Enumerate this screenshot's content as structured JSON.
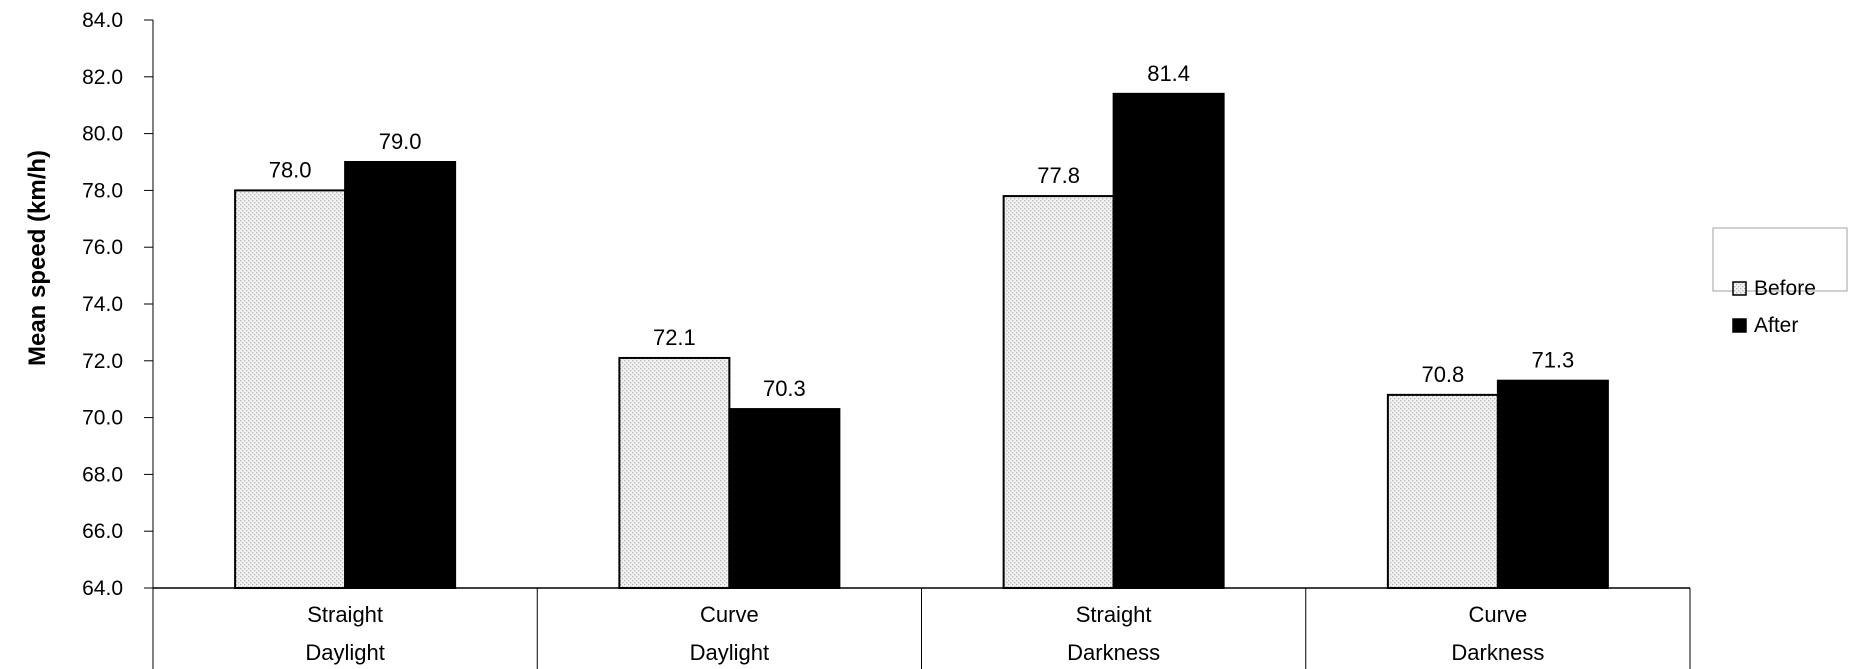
{
  "chart_data": {
    "type": "bar",
    "ylabel": "Mean speed (km/h)",
    "ylim": [
      64.0,
      84.0
    ],
    "yticks": [
      "64.0",
      "66.0",
      "68.0",
      "70.0",
      "72.0",
      "74.0",
      "76.0",
      "78.0",
      "80.0",
      "82.0",
      "84.0"
    ],
    "categories": [
      {
        "line1": "Straight",
        "line2": "Daylight"
      },
      {
        "line1": "Curve",
        "line2": "Daylight"
      },
      {
        "line1": "Straight",
        "line2": "Darkness"
      },
      {
        "line1": "Curve",
        "line2": "Darkness"
      }
    ],
    "series": [
      {
        "name": "Before",
        "values": [
          78.0,
          72.1,
          77.8,
          70.8
        ],
        "labels": [
          "78.0",
          "72.1",
          "77.8",
          "70.8"
        ],
        "fill": "#e6e6e6"
      },
      {
        "name": "After",
        "values": [
          79.0,
          70.3,
          81.4,
          71.3
        ],
        "labels": [
          "79.0",
          "70.3",
          "81.4",
          "71.3"
        ],
        "fill": "#000000"
      }
    ],
    "legend_position": "right",
    "grid": false
  }
}
